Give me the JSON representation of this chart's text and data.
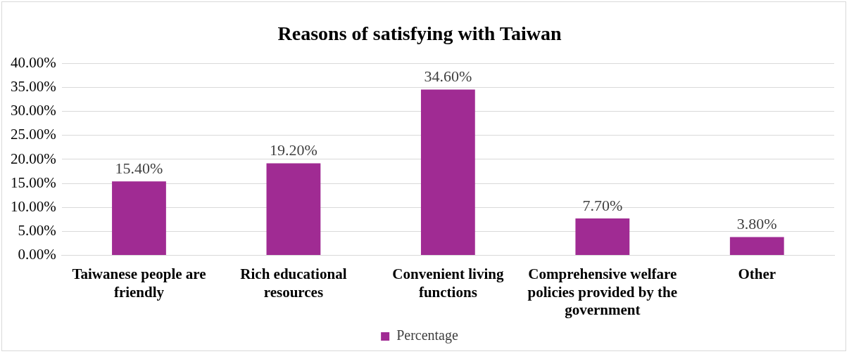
{
  "chart_data": {
    "type": "bar",
    "title": "Reasons of satisfying with Taiwan",
    "categories": [
      "Taiwanese people are friendly",
      "Rich educational resources",
      "Convenient living functions",
      "Comprehensive welfare policies provided by the government",
      "Other"
    ],
    "series": [
      {
        "name": "Percentage",
        "color": "#a02b93",
        "values": [
          15.4,
          19.2,
          34.6,
          7.7,
          3.8
        ],
        "value_labels": [
          "15.40%",
          "19.20%",
          "34.60%",
          "7.70%",
          "3.80%"
        ]
      }
    ],
    "ylim": [
      0,
      40
    ],
    "yticks": [
      {
        "value": 0,
        "label": "0.00%"
      },
      {
        "value": 5,
        "label": "5.00%"
      },
      {
        "value": 10,
        "label": "10.00%"
      },
      {
        "value": 15,
        "label": "15.00%"
      },
      {
        "value": 20,
        "label": "20.00%"
      },
      {
        "value": 25,
        "label": "25.00%"
      },
      {
        "value": 30,
        "label": "30.00%"
      },
      {
        "value": 35,
        "label": "35.00%"
      },
      {
        "value": 40,
        "label": "40.00%"
      }
    ],
    "grid": "y",
    "legend": "bottom"
  }
}
